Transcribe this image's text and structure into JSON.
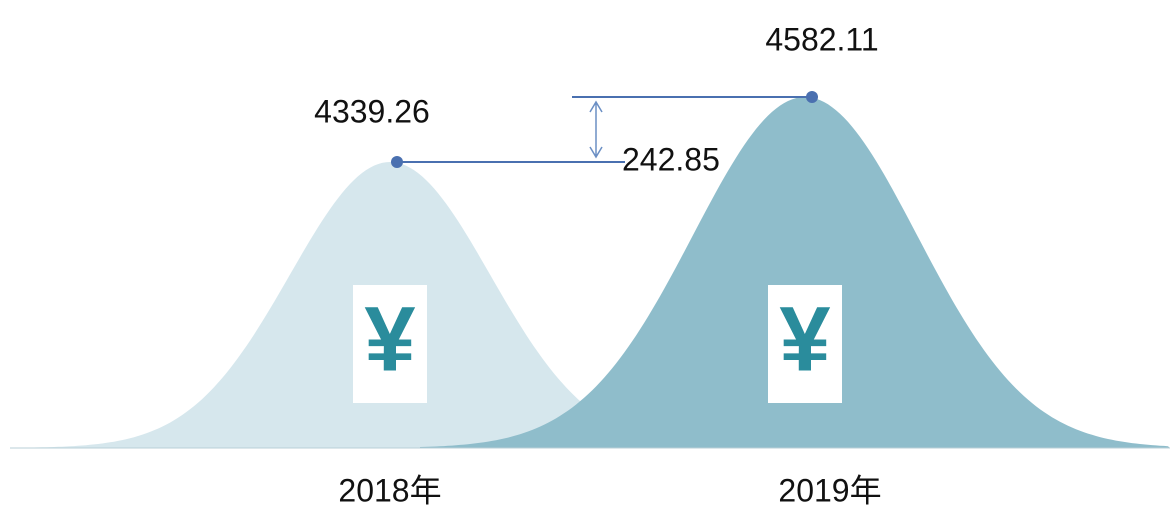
{
  "chart_data": {
    "type": "bell",
    "categories": [
      "2018年",
      "2019年"
    ],
    "values": [
      4339.26,
      4582.11
    ],
    "colors": [
      "#d6e7ed",
      "#8fbdcb"
    ],
    "symbol": "¥",
    "difference": 242.85
  }
}
